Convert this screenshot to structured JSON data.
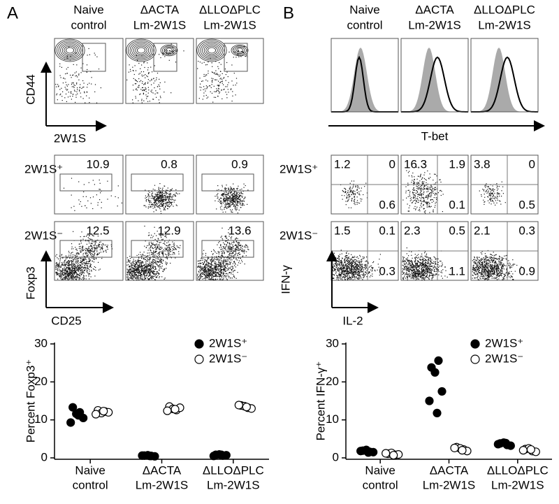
{
  "panel_a": {
    "label": "A",
    "columns": [
      [
        "Naive",
        "control"
      ],
      [
        "ΔACTA",
        "Lm-2W1S"
      ],
      [
        "ΔLLOΔPLC",
        "Lm-2W1S"
      ]
    ],
    "tetramer_y_label": "CD44",
    "tetramer_x_label": "2W1S",
    "rows": [
      "2W1S⁺",
      "2W1S⁻"
    ],
    "foxp3_percent": [
      [
        10.9,
        0.8,
        0.9
      ],
      [
        12.5,
        12.9,
        13.6
      ]
    ],
    "y_label": "Foxp3",
    "x_label": "CD25"
  },
  "panel_b": {
    "label": "B",
    "columns": [
      [
        "Naive",
        "control"
      ],
      [
        "ΔACTA",
        "Lm-2W1S"
      ],
      [
        "ΔLLOΔPLC",
        "Lm-2W1S"
      ]
    ],
    "histogram_x_label": "T-bet",
    "rows": [
      "2W1S⁺",
      "2W1S⁻"
    ],
    "quadrants": [
      [
        [
          1.2,
          0,
          0.6
        ],
        [
          16.3,
          1.9,
          0.1
        ],
        [
          3.8,
          0,
          0.5
        ]
      ],
      [
        [
          1.5,
          0.1,
          0.3
        ],
        [
          2.3,
          0.5,
          1.1
        ],
        [
          2.1,
          0.3,
          0.9
        ]
      ]
    ],
    "y_label": "IFN-γ",
    "x_label": "IL-2"
  },
  "chart_data": [
    {
      "type": "scatter",
      "y_label": "Percent Foxp3⁺",
      "categories": [
        [
          "Naive",
          "control"
        ],
        [
          "ΔACTA",
          "Lm-2W1S"
        ],
        [
          "ΔLLOΔPLC",
          "Lm-2W1S"
        ]
      ],
      "ylim": [
        0,
        30
      ],
      "yticks": [
        0,
        10,
        20,
        30
      ],
      "series": [
        {
          "name": "2W1S⁺",
          "color": "#000000",
          "values": [
            [
              13.3,
              12.0,
              11.6,
              10.5,
              9.3,
              11.2
            ],
            [
              0.6,
              0.5,
              0.7,
              0.4,
              0.6,
              0.5
            ],
            [
              0.8,
              0.6,
              0.9,
              0.7,
              0.5,
              0.8
            ]
          ]
        },
        {
          "name": "2W1S⁻",
          "color": "#ffffff",
          "values": [
            [
              12.5,
              12.2,
              11.8,
              12.0,
              11.5,
              12.3
            ],
            [
              13.5,
              12.6,
              12.9,
              13.2,
              12.4,
              12.8
            ],
            [
              13.8,
              13.2,
              13.6,
              13.0,
              13.9,
              13.4
            ]
          ]
        }
      ]
    },
    {
      "type": "scatter",
      "y_label": "Percent IFN-γ⁺",
      "categories": [
        [
          "Naive",
          "control"
        ],
        [
          "ΔACTA",
          "Lm-2W1S"
        ],
        [
          "ΔLLOΔPLC",
          "Lm-2W1S"
        ]
      ],
      "ylim": [
        0,
        30
      ],
      "yticks": [
        0,
        10,
        20,
        30
      ],
      "series": [
        {
          "name": "2W1S⁺",
          "color": "#000000",
          "values": [
            [
              1.9,
              1.6,
              2.1,
              1.5,
              1.8,
              1.4
            ],
            [
              23.8,
              25.6,
              22.5,
              17.5,
              15.0,
              11.8
            ],
            [
              3.8,
              3.4,
              4.0,
              3.2,
              3.6,
              3.9
            ]
          ]
        },
        {
          "name": "2W1S⁻",
          "color": "#ffffff",
          "values": [
            [
              1.1,
              0.8,
              1.3,
              0.9,
              1.2,
              0.7
            ],
            [
              2.8,
              2.2,
              2.5,
              1.8,
              2.6,
              2.0
            ],
            [
              2.3,
              1.8,
              2.5,
              1.6,
              2.0,
              2.2
            ]
          ]
        }
      ]
    }
  ]
}
